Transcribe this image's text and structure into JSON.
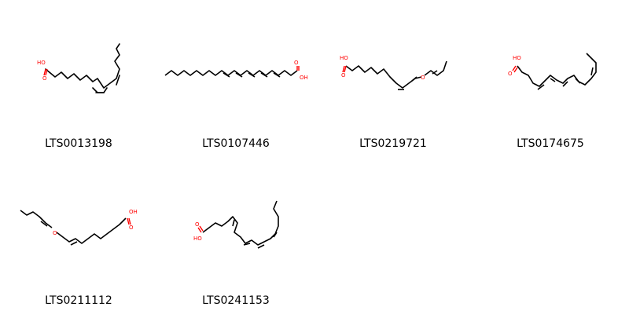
{
  "molecules": [
    {
      "id": "LTS0013198",
      "acid_label": "HO",
      "oxy_label": "O"
    },
    {
      "id": "LTS0107446",
      "acid_label": "OH",
      "oxy_label": "O"
    },
    {
      "id": "LTS0219721",
      "acid_label": "HO",
      "oxy_label": "O",
      "ether_label": "O"
    },
    {
      "id": "LTS0174675",
      "acid_label": "HO",
      "oxy_label": "O"
    },
    {
      "id": "LTS0211112",
      "acid_label": "OH",
      "oxy_label": "O",
      "ether_label": "O"
    },
    {
      "id": "LTS0241153",
      "acid_label": "HO",
      "oxy_label": "O"
    }
  ],
  "colors": {
    "bond": "#000000",
    "heteroatom": "#ff0000",
    "background": "#ffffff"
  }
}
